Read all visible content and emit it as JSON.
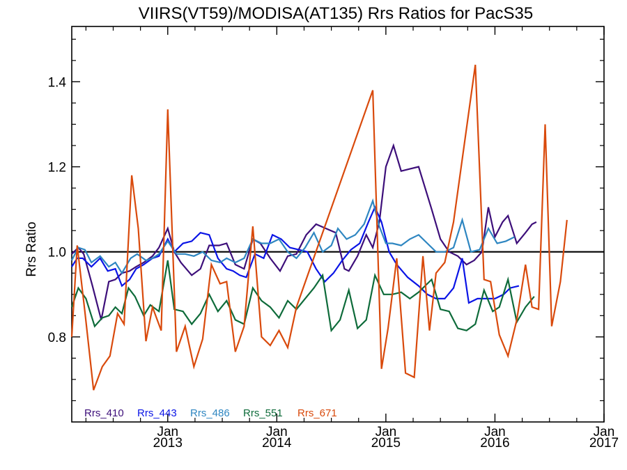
{
  "chart_data": {
    "type": "line",
    "title": "VIIRS(VT59)/MODISA(AT135)  Rrs Ratios for PacS35",
    "xlabel": "",
    "ylabel": "Rrs Ratio",
    "xlim": [
      2012.12,
      2017.0
    ],
    "ylim": [
      0.6,
      1.53
    ],
    "yticks": [
      0.8,
      1.0,
      1.2,
      1.4
    ],
    "ytick_labels": [
      "0.8",
      "1.0",
      "1.2",
      "1.4"
    ],
    "xticks": [
      {
        "x": 2013.0,
        "month": "Jan",
        "year": "2013"
      },
      {
        "x": 2014.0,
        "month": "Jan",
        "year": "2014"
      },
      {
        "x": 2015.0,
        "month": "Jan",
        "year": "2015"
      },
      {
        "x": 2016.0,
        "month": "Jan",
        "year": "2016"
      },
      {
        "x": 2017.0,
        "month": "Jan",
        "year": "2017"
      }
    ],
    "reference_line": 1.0,
    "grid": false,
    "legend_position": "bottom-left",
    "series": [
      {
        "name": "Rrs_410",
        "color": "#3d0f7a",
        "points": [
          [
            2012.12,
            0.995
          ],
          [
            2012.18,
            1.01
          ],
          [
            2012.23,
            0.995
          ],
          [
            2012.31,
            0.92
          ],
          [
            2012.39,
            0.84
          ],
          [
            2012.46,
            0.93
          ],
          [
            2012.52,
            0.935
          ],
          [
            2012.58,
            0.95
          ],
          [
            2012.65,
            0.955
          ],
          [
            2012.71,
            0.965
          ],
          [
            2012.78,
            0.975
          ],
          [
            2012.86,
            0.99
          ],
          [
            2012.92,
            1.01
          ],
          [
            2013.0,
            1.055
          ],
          [
            2013.06,
            1.0
          ],
          [
            2013.12,
            0.975
          ],
          [
            2013.22,
            0.945
          ],
          [
            2013.3,
            0.96
          ],
          [
            2013.38,
            1.015
          ],
          [
            2013.47,
            1.015
          ],
          [
            2013.54,
            1.02
          ],
          [
            2013.62,
            0.97
          ],
          [
            2013.7,
            0.96
          ],
          [
            2013.78,
            1.03
          ],
          [
            2013.85,
            1.02
          ],
          [
            2013.94,
            0.985
          ],
          [
            2014.03,
            0.955
          ],
          [
            2014.1,
            0.99
          ],
          [
            2014.18,
            0.995
          ],
          [
            2014.27,
            1.04
          ],
          [
            2014.36,
            1.065
          ],
          [
            2014.45,
            1.055
          ],
          [
            2014.54,
            1.045
          ],
          [
            2014.62,
            0.96
          ],
          [
            2014.66,
            0.955
          ],
          [
            2014.74,
            0.99
          ],
          [
            2014.82,
            1.04
          ],
          [
            2014.88,
            1.01
          ],
          [
            2014.94,
            1.07
          ],
          [
            2015.0,
            1.2
          ],
          [
            2015.07,
            1.25
          ],
          [
            2015.14,
            1.19
          ],
          [
            2015.22,
            1.195
          ],
          [
            2015.3,
            1.2
          ],
          [
            2015.42,
            1.1
          ],
          [
            2015.5,
            1.03
          ],
          [
            2015.58,
            1.0
          ],
          [
            2015.66,
            0.99
          ],
          [
            2015.74,
            0.97
          ],
          [
            2015.81,
            0.98
          ],
          [
            2015.88,
            1.0
          ],
          [
            2015.94,
            1.105
          ],
          [
            2016.0,
            1.035
          ],
          [
            2016.07,
            1.07
          ],
          [
            2016.12,
            1.085
          ],
          [
            2016.2,
            1.02
          ],
          [
            2016.28,
            1.045
          ],
          [
            2016.34,
            1.065
          ],
          [
            2016.38,
            1.07
          ]
        ]
      },
      {
        "name": "Rrs_443",
        "color": "#0a14e6",
        "points": [
          [
            2012.12,
            0.965
          ],
          [
            2012.17,
            0.985
          ],
          [
            2012.22,
            0.985
          ],
          [
            2012.3,
            0.965
          ],
          [
            2012.38,
            0.985
          ],
          [
            2012.45,
            0.955
          ],
          [
            2012.52,
            0.96
          ],
          [
            2012.58,
            0.92
          ],
          [
            2012.65,
            0.935
          ],
          [
            2012.71,
            0.96
          ],
          [
            2012.78,
            0.97
          ],
          [
            2012.86,
            0.985
          ],
          [
            2012.92,
            0.99
          ],
          [
            2013.0,
            1.03
          ],
          [
            2013.06,
            1.0
          ],
          [
            2013.14,
            1.02
          ],
          [
            2013.22,
            1.025
          ],
          [
            2013.3,
            1.045
          ],
          [
            2013.38,
            1.04
          ],
          [
            2013.46,
            0.985
          ],
          [
            2013.54,
            0.96
          ],
          [
            2013.6,
            0.955
          ],
          [
            2013.66,
            0.945
          ],
          [
            2013.72,
            0.94
          ],
          [
            2013.8,
            0.995
          ],
          [
            2013.88,
            0.985
          ],
          [
            2013.96,
            1.04
          ],
          [
            2014.04,
            1.03
          ],
          [
            2014.12,
            1.01
          ],
          [
            2014.2,
            1.005
          ],
          [
            2014.28,
            1.0
          ],
          [
            2014.36,
            0.96
          ],
          [
            2014.44,
            0.93
          ],
          [
            2014.52,
            0.95
          ],
          [
            2014.6,
            0.98
          ],
          [
            2014.68,
            1.005
          ],
          [
            2014.76,
            1.02
          ],
          [
            2014.84,
            1.07
          ],
          [
            2014.9,
            1.105
          ],
          [
            2014.96,
            1.07
          ],
          [
            2015.03,
            1.0
          ],
          [
            2015.1,
            0.97
          ],
          [
            2015.2,
            0.94
          ],
          [
            2015.3,
            0.92
          ],
          [
            2015.38,
            0.9
          ],
          [
            2015.46,
            0.89
          ],
          [
            2015.54,
            0.89
          ],
          [
            2015.62,
            0.915
          ],
          [
            2015.7,
            0.985
          ],
          [
            2015.76,
            0.88
          ],
          [
            2015.84,
            0.89
          ],
          [
            2015.92,
            0.89
          ],
          [
            2016.0,
            0.89
          ],
          [
            2016.08,
            0.9
          ],
          [
            2016.14,
            0.915
          ],
          [
            2016.22,
            0.92
          ]
        ]
      },
      {
        "name": "Rrs_486",
        "color": "#2e86c1",
        "points": [
          [
            2012.12,
            0.98
          ],
          [
            2012.18,
            1.01
          ],
          [
            2012.24,
            1.005
          ],
          [
            2012.3,
            0.975
          ],
          [
            2012.38,
            0.99
          ],
          [
            2012.46,
            0.965
          ],
          [
            2012.52,
            0.975
          ],
          [
            2012.58,
            0.95
          ],
          [
            2012.66,
            0.985
          ],
          [
            2012.72,
            0.995
          ],
          [
            2012.8,
            0.98
          ],
          [
            2012.86,
            0.985
          ],
          [
            2012.92,
            0.995
          ],
          [
            2013.0,
            1.025
          ],
          [
            2013.08,
            0.995
          ],
          [
            2013.16,
            0.995
          ],
          [
            2013.24,
            0.99
          ],
          [
            2013.32,
            1.0
          ],
          [
            2013.4,
            0.98
          ],
          [
            2013.48,
            0.975
          ],
          [
            2013.54,
            0.985
          ],
          [
            2013.62,
            0.975
          ],
          [
            2013.7,
            0.985
          ],
          [
            2013.78,
            1.03
          ],
          [
            2013.86,
            1.02
          ],
          [
            2013.94,
            1.02
          ],
          [
            2014.02,
            1.03
          ],
          [
            2014.1,
            1.0
          ],
          [
            2014.18,
            0.985
          ],
          [
            2014.26,
            1.01
          ],
          [
            2014.34,
            1.045
          ],
          [
            2014.42,
            1.0
          ],
          [
            2014.5,
            1.015
          ],
          [
            2014.56,
            1.055
          ],
          [
            2014.64,
            1.03
          ],
          [
            2014.72,
            1.04
          ],
          [
            2014.8,
            1.065
          ],
          [
            2014.88,
            1.12
          ],
          [
            2014.94,
            1.06
          ],
          [
            2015.0,
            1.02
          ],
          [
            2015.06,
            1.02
          ],
          [
            2015.14,
            1.015
          ],
          [
            2015.22,
            1.03
          ],
          [
            2015.3,
            1.04
          ],
          [
            2015.38,
            1.02
          ],
          [
            2015.46,
            1.0
          ],
          [
            2015.54,
            1.0
          ],
          [
            2015.62,
            1.01
          ],
          [
            2015.7,
            1.075
          ],
          [
            2015.78,
            1.0
          ],
          [
            2015.86,
            1.005
          ],
          [
            2015.94,
            1.055
          ],
          [
            2016.02,
            1.02
          ],
          [
            2016.1,
            1.025
          ],
          [
            2016.18,
            1.035
          ]
        ]
      },
      {
        "name": "Rrs_551",
        "color": "#0e6b3a",
        "points": [
          [
            2012.12,
            0.87
          ],
          [
            2012.18,
            0.915
          ],
          [
            2012.25,
            0.89
          ],
          [
            2012.33,
            0.825
          ],
          [
            2012.4,
            0.845
          ],
          [
            2012.46,
            0.85
          ],
          [
            2012.52,
            0.87
          ],
          [
            2012.58,
            0.855
          ],
          [
            2012.64,
            0.915
          ],
          [
            2012.7,
            0.895
          ],
          [
            2012.78,
            0.85
          ],
          [
            2012.84,
            0.875
          ],
          [
            2012.92,
            0.86
          ],
          [
            2013.0,
            0.98
          ],
          [
            2013.06,
            0.865
          ],
          [
            2013.14,
            0.86
          ],
          [
            2013.22,
            0.83
          ],
          [
            2013.3,
            0.855
          ],
          [
            2013.38,
            0.9
          ],
          [
            2013.46,
            0.86
          ],
          [
            2013.54,
            0.885
          ],
          [
            2013.62,
            0.84
          ],
          [
            2013.7,
            0.83
          ],
          [
            2013.78,
            0.915
          ],
          [
            2013.86,
            0.885
          ],
          [
            2013.94,
            0.87
          ],
          [
            2014.02,
            0.845
          ],
          [
            2014.1,
            0.885
          ],
          [
            2014.18,
            0.865
          ],
          [
            2014.26,
            0.89
          ],
          [
            2014.34,
            0.915
          ],
          [
            2014.42,
            0.945
          ],
          [
            2014.5,
            0.815
          ],
          [
            2014.58,
            0.84
          ],
          [
            2014.66,
            0.91
          ],
          [
            2014.74,
            0.82
          ],
          [
            2014.82,
            0.84
          ],
          [
            2014.9,
            0.945
          ],
          [
            2014.98,
            0.9
          ],
          [
            2015.06,
            0.9
          ],
          [
            2015.14,
            0.905
          ],
          [
            2015.22,
            0.89
          ],
          [
            2015.3,
            0.905
          ],
          [
            2015.42,
            0.935
          ],
          [
            2015.5,
            0.865
          ],
          [
            2015.58,
            0.86
          ],
          [
            2015.66,
            0.82
          ],
          [
            2015.74,
            0.815
          ],
          [
            2015.82,
            0.83
          ],
          [
            2015.9,
            0.91
          ],
          [
            2015.98,
            0.86
          ],
          [
            2016.04,
            0.87
          ],
          [
            2016.12,
            0.935
          ],
          [
            2016.2,
            0.835
          ],
          [
            2016.28,
            0.87
          ],
          [
            2016.36,
            0.895
          ]
        ]
      },
      {
        "name": "Rrs_671",
        "color": "#d94a0c",
        "points": [
          [
            2012.12,
            0.8
          ],
          [
            2012.17,
            1.015
          ],
          [
            2012.24,
            0.86
          ],
          [
            2012.32,
            0.675
          ],
          [
            2012.4,
            0.73
          ],
          [
            2012.47,
            0.755
          ],
          [
            2012.54,
            0.855
          ],
          [
            2012.6,
            0.83
          ],
          [
            2012.67,
            1.18
          ],
          [
            2012.73,
            1.055
          ],
          [
            2012.8,
            0.79
          ],
          [
            2012.86,
            0.87
          ],
          [
            2012.94,
            0.815
          ],
          [
            2013.0,
            1.335
          ],
          [
            2013.08,
            0.765
          ],
          [
            2013.16,
            0.825
          ],
          [
            2013.24,
            0.73
          ],
          [
            2013.32,
            0.795
          ],
          [
            2013.4,
            0.97
          ],
          [
            2013.48,
            0.925
          ],
          [
            2013.54,
            0.93
          ],
          [
            2013.62,
            0.765
          ],
          [
            2013.7,
            0.825
          ],
          [
            2013.78,
            1.06
          ],
          [
            2013.86,
            0.8
          ],
          [
            2013.94,
            0.78
          ],
          [
            2014.02,
            0.815
          ],
          [
            2014.1,
            0.775
          ],
          [
            2014.18,
            0.87
          ],
          [
            2014.88,
            1.38
          ],
          [
            2014.96,
            0.725
          ],
          [
            2015.02,
            0.82
          ],
          [
            2015.1,
            0.985
          ],
          [
            2015.18,
            0.715
          ],
          [
            2015.26,
            0.705
          ],
          [
            2015.34,
            0.99
          ],
          [
            2015.4,
            0.815
          ],
          [
            2015.46,
            0.95
          ],
          [
            2015.54,
            0.975
          ],
          [
            2015.62,
            1.07
          ],
          [
            2015.82,
            1.44
          ],
          [
            2015.9,
            0.935
          ],
          [
            2015.96,
            0.93
          ],
          [
            2016.04,
            0.805
          ],
          [
            2016.12,
            0.755
          ],
          [
            2016.2,
            0.84
          ],
          [
            2016.28,
            0.97
          ],
          [
            2016.34,
            0.87
          ],
          [
            2016.4,
            0.865
          ],
          [
            2016.46,
            1.3
          ],
          [
            2016.52,
            0.825
          ],
          [
            2016.6,
            0.93
          ],
          [
            2016.66,
            1.075
          ]
        ]
      }
    ]
  }
}
